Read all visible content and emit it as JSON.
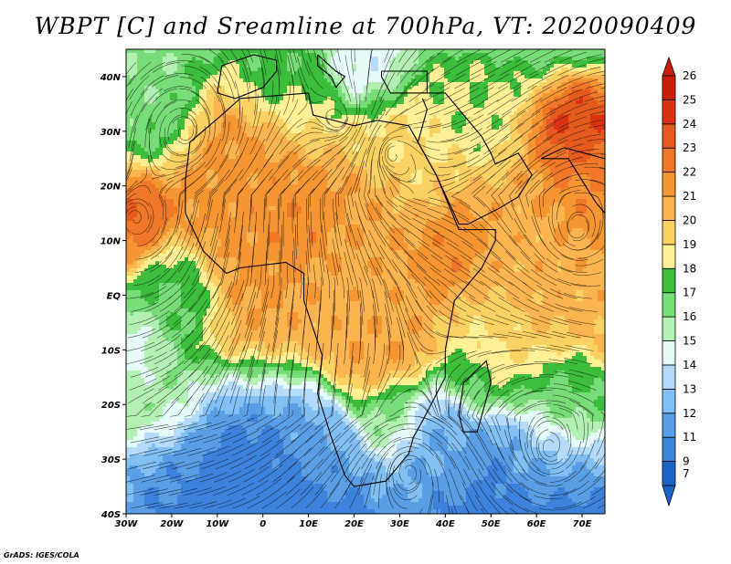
{
  "title": "WBPT [C] and Sreamline at 700hPa, VT: 2020090409",
  "credit": "GrADS: IGES/COLA",
  "map": {
    "lon_ticks": [
      {
        "value": -30,
        "label": "30W"
      },
      {
        "value": -20,
        "label": "20W"
      },
      {
        "value": -10,
        "label": "10W"
      },
      {
        "value": 0,
        "label": "0"
      },
      {
        "value": 10,
        "label": "10E"
      },
      {
        "value": 20,
        "label": "20E"
      },
      {
        "value": 30,
        "label": "30E"
      },
      {
        "value": 40,
        "label": "40E"
      },
      {
        "value": 50,
        "label": "50E"
      },
      {
        "value": 60,
        "label": "60E"
      },
      {
        "value": 70,
        "label": "70E"
      }
    ],
    "lat_ticks": [
      {
        "value": 40,
        "label": "40N"
      },
      {
        "value": 30,
        "label": "30N"
      },
      {
        "value": 20,
        "label": "20N"
      },
      {
        "value": 10,
        "label": "10N"
      },
      {
        "value": 0,
        "label": "EQ"
      },
      {
        "value": -10,
        "label": "10S"
      },
      {
        "value": -20,
        "label": "20S"
      },
      {
        "value": -30,
        "label": "30S"
      },
      {
        "value": -40,
        "label": "40S"
      }
    ],
    "lon_range": [
      -30,
      75
    ],
    "lat_range": [
      -40,
      45
    ],
    "field_blobs": [
      {
        "lon": 0,
        "lat": 18,
        "w": 14,
        "v": 21.5
      },
      {
        "lon": -28,
        "lat": 14,
        "w": 6,
        "v": 23
      },
      {
        "lon": 8,
        "lat": 13,
        "w": 6,
        "v": 22
      },
      {
        "lon": 25,
        "lat": 12,
        "w": 8,
        "v": 21
      },
      {
        "lon": 40,
        "lat": 11,
        "w": 7,
        "v": 22
      },
      {
        "lon": 20,
        "lat": 2,
        "w": 9,
        "v": 20.5
      },
      {
        "lon": 25,
        "lat": -10,
        "w": 7,
        "v": 21
      },
      {
        "lon": 35,
        "lat": 22,
        "w": 8,
        "v": 19
      },
      {
        "lon": 25,
        "lat": 30,
        "w": 6,
        "v": 19
      },
      {
        "lon": 10,
        "lat": 33,
        "w": 6,
        "v": 18
      },
      {
        "lon": 3,
        "lat": 40,
        "w": 7,
        "v": 17
      },
      {
        "lon": 22,
        "lat": 40,
        "w": 6,
        "v": 14
      },
      {
        "lon": 45,
        "lat": 33,
        "w": 7,
        "v": 18
      },
      {
        "lon": 70,
        "lat": 30,
        "w": 6,
        "v": 24.5
      },
      {
        "lon": 72,
        "lat": 20,
        "w": 8,
        "v": 22
      },
      {
        "lon": 60,
        "lat": 5,
        "w": 10,
        "v": 20.5
      },
      {
        "lon": 52,
        "lat": -10,
        "w": 8,
        "v": 19
      },
      {
        "lon": 47,
        "lat": -15,
        "w": 5,
        "v": 17
      },
      {
        "lon": -25,
        "lat": 35,
        "w": 8,
        "v": 16
      },
      {
        "lon": -20,
        "lat": 0,
        "w": 7,
        "v": 16.5
      },
      {
        "lon": -28,
        "lat": -10,
        "w": 6,
        "v": 14
      },
      {
        "lon": -22,
        "lat": -20,
        "w": 7,
        "v": 16
      },
      {
        "lon": -15,
        "lat": -32,
        "w": 10,
        "v": 11
      },
      {
        "lon": 10,
        "lat": -30,
        "w": 8,
        "v": 12
      },
      {
        "lon": 40,
        "lat": -28,
        "w": 8,
        "v": 12
      },
      {
        "lon": 60,
        "lat": -30,
        "w": 7,
        "v": 13
      },
      {
        "lon": 65,
        "lat": -20,
        "w": 7,
        "v": 17
      },
      {
        "lon": 28,
        "lat": -22,
        "w": 5,
        "v": 16
      },
      {
        "lon": 0,
        "lat": -40,
        "w": 14,
        "v": 9
      },
      {
        "lon": 55,
        "lat": -40,
        "w": 14,
        "v": 10
      }
    ],
    "vortex_centers": [
      {
        "lon": 17,
        "lat": 32,
        "sign": 1
      },
      {
        "lon": 28,
        "lat": 26,
        "sign": -1
      },
      {
        "lon": -17,
        "lat": 30,
        "sign": 1
      },
      {
        "lon": 69,
        "lat": 12,
        "sign": -1
      },
      {
        "lon": 63,
        "lat": -28,
        "sign": 1
      },
      {
        "lon": 32,
        "lat": -32,
        "sign": -1
      },
      {
        "lon": -28,
        "lat": 14,
        "sign": 1
      }
    ]
  },
  "colorbar": {
    "levels": [
      "7",
      "9",
      "11",
      "12",
      "13",
      "14",
      "15",
      "16",
      "17",
      "18",
      "19",
      "20",
      "21",
      "22",
      "23",
      "24",
      "25",
      "26"
    ],
    "colors": [
      "#1e64c8",
      "#3c82dc",
      "#5a9fe6",
      "#82bff2",
      "#b4dcfa",
      "#e6fafa",
      "#b4f0b4",
      "#78dc78",
      "#3cbe3c",
      "#fff096",
      "#fad264",
      "#fab450",
      "#f59632",
      "#f07828",
      "#e65a1e",
      "#dc3214",
      "#c81e0a"
    ]
  }
}
